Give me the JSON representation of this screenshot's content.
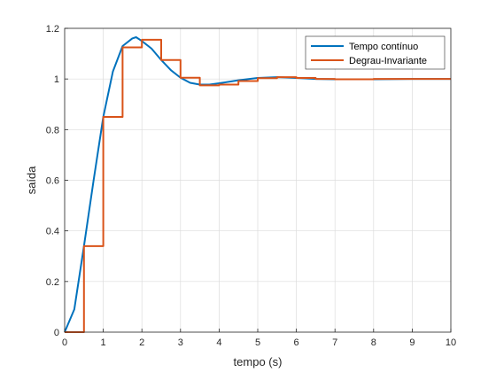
{
  "chart_data": {
    "type": "line",
    "title": "",
    "xlabel": "tempo (s)",
    "ylabel": "saída",
    "xlim": [
      0,
      10
    ],
    "ylim": [
      0,
      1.2
    ],
    "xticks": [
      "0",
      "1",
      "2",
      "3",
      "4",
      "5",
      "6",
      "7",
      "8",
      "9",
      "10"
    ],
    "yticks": [
      "0",
      "0.2",
      "0.4",
      "0.6",
      "0.8",
      "1",
      "1.2"
    ],
    "grid": true,
    "legend_position": "top-right",
    "series": [
      {
        "name": "Tempo contínuo",
        "style": "line",
        "color": "#0072BD",
        "x": [
          0,
          0.25,
          0.5,
          0.75,
          1.0,
          1.25,
          1.5,
          1.75,
          1.85,
          2.0,
          2.25,
          2.5,
          2.75,
          3.0,
          3.25,
          3.5,
          3.75,
          4.0,
          4.5,
          5.0,
          5.5,
          6.0,
          6.5,
          7.0,
          8.0,
          9.0,
          10.0
        ],
        "y": [
          0,
          0.09,
          0.34,
          0.6,
          0.85,
          1.03,
          1.13,
          1.16,
          1.165,
          1.15,
          1.12,
          1.075,
          1.035,
          1.005,
          0.985,
          0.978,
          0.978,
          0.983,
          0.995,
          1.004,
          1.007,
          1.004,
          1.0,
          0.999,
          0.999,
          1.0,
          1.0
        ]
      },
      {
        "name": "Degrau-Invariante",
        "style": "step",
        "color": "#D95319",
        "x": [
          0,
          0.5,
          1.0,
          1.5,
          2.0,
          2.5,
          3.0,
          3.5,
          4.0,
          4.5,
          5.0,
          5.5,
          6.0,
          6.5,
          7.0,
          7.5,
          8.0,
          8.5,
          9.0,
          9.5,
          10.0
        ],
        "y": [
          0,
          0.34,
          0.85,
          1.125,
          1.155,
          1.075,
          1.005,
          0.975,
          0.978,
          0.992,
          1.003,
          1.007,
          1.004,
          1.0,
          0.999,
          0.999,
          1.0,
          1.0,
          1.0,
          1.0,
          1.0
        ]
      }
    ]
  }
}
